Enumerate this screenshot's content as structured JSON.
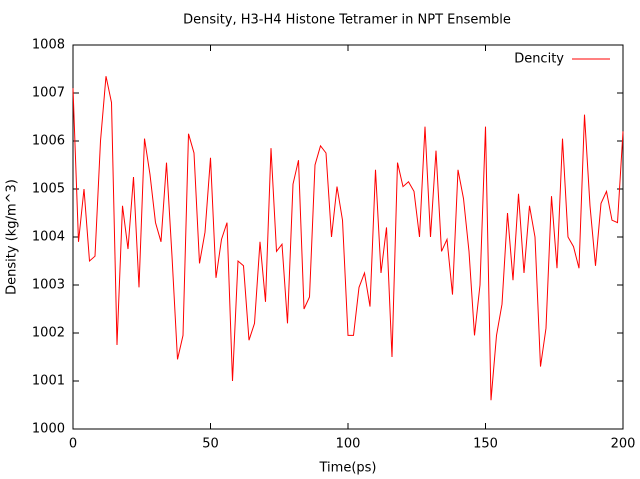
{
  "chart_data": {
    "type": "line",
    "title": "Density, H3-H4 Histone Tetramer in NPT Ensemble",
    "x_label": "Time(ps)",
    "y_label": "Density (kg/m^3)",
    "x": [
      0,
      2,
      4,
      6,
      8,
      10,
      12,
      14,
      16,
      18,
      20,
      22,
      24,
      26,
      28,
      30,
      32,
      34,
      36,
      38,
      40,
      42,
      44,
      46,
      48,
      50,
      52,
      54,
      56,
      58,
      60,
      62,
      64,
      66,
      68,
      70,
      72,
      74,
      76,
      78,
      80,
      82,
      84,
      86,
      88,
      90,
      92,
      94,
      96,
      98,
      100,
      102,
      104,
      106,
      108,
      110,
      112,
      114,
      116,
      118,
      120,
      122,
      124,
      126,
      128,
      130,
      132,
      134,
      136,
      138,
      140,
      142,
      144,
      146,
      148,
      150,
      152,
      154,
      156,
      158,
      160,
      162,
      164,
      166,
      168,
      170,
      172,
      174,
      176,
      178,
      180,
      182,
      184,
      186,
      188,
      190,
      192,
      194,
      196,
      198,
      200
    ],
    "series": [
      {
        "name": "Dencity",
        "color": "#ff0000",
        "values": [
          1007.1,
          1003.9,
          1005.0,
          1003.5,
          1003.6,
          1006.0,
          1007.35,
          1006.8,
          1001.75,
          1004.65,
          1003.75,
          1005.25,
          1002.95,
          1006.05,
          1005.3,
          1004.3,
          1003.9,
          1005.55,
          1003.6,
          1001.45,
          1001.95,
          1006.15,
          1005.75,
          1003.45,
          1004.1,
          1005.65,
          1003.15,
          1003.95,
          1004.3,
          1001.0,
          1003.5,
          1003.4,
          1001.85,
          1002.2,
          1003.9,
          1002.65,
          1005.85,
          1003.7,
          1003.85,
          1002.2,
          1005.1,
          1005.6,
          1002.5,
          1002.75,
          1005.5,
          1005.9,
          1005.75,
          1004.0,
          1005.05,
          1004.35,
          1001.95,
          1001.95,
          1002.95,
          1003.25,
          1002.55,
          1005.4,
          1003.25,
          1004.2,
          1001.5,
          1005.55,
          1005.05,
          1005.15,
          1004.95,
          1004.0,
          1006.3,
          1004.0,
          1005.8,
          1003.7,
          1003.95,
          1002.8,
          1005.4,
          1004.8,
          1003.7,
          1001.95,
          1003.0,
          1006.3,
          1000.6,
          1001.95,
          1002.6,
          1004.5,
          1003.1,
          1004.9,
          1003.25,
          1004.65,
          1004.0,
          1001.3,
          1002.1,
          1004.85,
          1003.35,
          1006.05,
          1004.0,
          1003.8,
          1003.35,
          1006.55,
          1004.65,
          1003.4,
          1004.7,
          1004.95,
          1004.35,
          1004.3,
          1006.2
        ]
      }
    ],
    "xlim": [
      0,
      200
    ],
    "xticks": [
      0,
      50,
      100,
      150,
      200
    ],
    "ylim": [
      1000,
      1008
    ],
    "yticks": [
      1000,
      1001,
      1002,
      1003,
      1004,
      1005,
      1006,
      1007,
      1008
    ],
    "legend": "top-right",
    "grid": false
  }
}
